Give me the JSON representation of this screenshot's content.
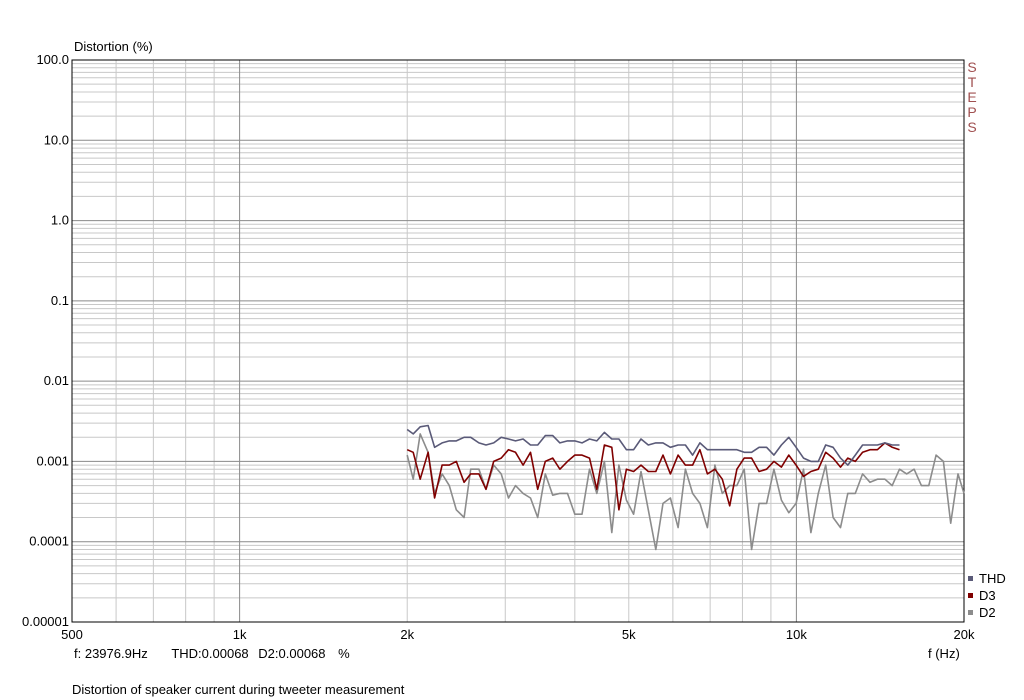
{
  "chart_data": {
    "type": "line",
    "ylabel": "Distortion (%)",
    "xlabel": "f (Hz)",
    "x_scale": "log",
    "y_scale": "log",
    "xlim": [
      500,
      20000
    ],
    "ylim": [
      1e-05,
      100
    ],
    "grid": true,
    "x_ticks": [
      {
        "value": 500,
        "label": "500"
      },
      {
        "value": 1000,
        "label": "1k"
      },
      {
        "value": 2000,
        "label": "2k"
      },
      {
        "value": 5000,
        "label": "5k"
      },
      {
        "value": 10000,
        "label": "10k"
      },
      {
        "value": 20000,
        "label": "20k"
      }
    ],
    "y_ticks": [
      {
        "value": 100,
        "label": "100.0"
      },
      {
        "value": 10,
        "label": "10.0"
      },
      {
        "value": 1,
        "label": "1.0"
      },
      {
        "value": 0.1,
        "label": "0.1"
      },
      {
        "value": 0.01,
        "label": "0.01"
      },
      {
        "value": 0.001,
        "label": "0.001"
      },
      {
        "value": 0.0001,
        "label": "0.0001"
      },
      {
        "value": 1e-05,
        "label": "0.00001"
      }
    ],
    "legend_position": "bottom-right",
    "series": [
      {
        "name": "THD",
        "color": "#5a5a78",
        "x": [
          2000,
          2050,
          2110,
          2180,
          2240,
          2310,
          2380,
          2450,
          2530,
          2600,
          2690,
          2770,
          2860,
          2950,
          3040,
          3130,
          3230,
          3330,
          3430,
          3540,
          3650,
          3760,
          3880,
          4000,
          4120,
          4250,
          4380,
          4520,
          4660,
          4800,
          4950,
          5100,
          5260,
          5420,
          5590,
          5760,
          5940,
          6130,
          6320,
          6510,
          6710,
          6920,
          7140,
          7360,
          7590,
          7820,
          8060,
          8310,
          8570,
          8840,
          9110,
          9400,
          9690,
          9990,
          10300,
          10620,
          10950,
          11290,
          11640,
          12000,
          12370,
          12760,
          13150,
          13560,
          13980,
          14420,
          14860,
          15320
        ],
        "values": [
          0.0025,
          0.0022,
          0.0027,
          0.0028,
          0.0015,
          0.0017,
          0.0018,
          0.0018,
          0.002,
          0.002,
          0.0017,
          0.0016,
          0.0017,
          0.002,
          0.0019,
          0.0018,
          0.0019,
          0.0016,
          0.0016,
          0.0021,
          0.0021,
          0.0017,
          0.0018,
          0.0018,
          0.0017,
          0.0019,
          0.0018,
          0.0023,
          0.0019,
          0.0019,
          0.0014,
          0.0014,
          0.0019,
          0.0016,
          0.0017,
          0.0017,
          0.0015,
          0.0016,
          0.0016,
          0.0012,
          0.0017,
          0.0014,
          0.0014,
          0.0014,
          0.0014,
          0.0014,
          0.0013,
          0.0013,
          0.0015,
          0.0015,
          0.0012,
          0.0016,
          0.002,
          0.0015,
          0.0011,
          0.001,
          0.001,
          0.0016,
          0.0015,
          0.0011,
          0.0009,
          0.0012,
          0.0016,
          0.0016,
          0.0016,
          0.0017,
          0.0016,
          0.0016
        ]
      },
      {
        "name": "D3",
        "color": "#800000",
        "x": [
          2000,
          2050,
          2110,
          2180,
          2240,
          2310,
          2380,
          2450,
          2530,
          2600,
          2690,
          2770,
          2860,
          2950,
          3040,
          3130,
          3230,
          3330,
          3430,
          3540,
          3650,
          3760,
          3880,
          4000,
          4120,
          4250,
          4380,
          4520,
          4660,
          4800,
          4950,
          5100,
          5260,
          5420,
          5590,
          5760,
          5940,
          6130,
          6320,
          6510,
          6710,
          6920,
          7140,
          7360,
          7590,
          7820,
          8060,
          8310,
          8570,
          8840,
          9110,
          9400,
          9690,
          9990,
          10300,
          10620,
          10950,
          11290,
          11640,
          12000,
          12370,
          12760,
          13150,
          13560,
          13980,
          14420,
          14860,
          15320
        ],
        "values": [
          0.0014,
          0.0013,
          0.0006,
          0.0013,
          0.00035,
          0.0009,
          0.0009,
          0.001,
          0.00055,
          0.0007,
          0.0007,
          0.00045,
          0.001,
          0.0011,
          0.0014,
          0.0013,
          0.0009,
          0.0013,
          0.00045,
          0.001,
          0.0011,
          0.0008,
          0.001,
          0.0012,
          0.0012,
          0.0011,
          0.00045,
          0.0016,
          0.0015,
          0.00025,
          0.0008,
          0.00075,
          0.0009,
          0.00075,
          0.00075,
          0.0012,
          0.0007,
          0.0012,
          0.0009,
          0.0009,
          0.0014,
          0.0007,
          0.0008,
          0.0006,
          0.00028,
          0.0008,
          0.0011,
          0.0011,
          0.00075,
          0.0008,
          0.001,
          0.00085,
          0.0012,
          0.0009,
          0.00065,
          0.00075,
          0.0008,
          0.0013,
          0.0011,
          0.00085,
          0.0011,
          0.001,
          0.0013,
          0.0014,
          0.0014,
          0.0017,
          0.0015,
          0.0014
        ]
      },
      {
        "name": "D2",
        "color": "#8c8c8c",
        "x": [
          2000,
          2050,
          2110,
          2180,
          2240,
          2310,
          2380,
          2450,
          2530,
          2600,
          2690,
          2770,
          2860,
          2950,
          3040,
          3130,
          3230,
          3330,
          3430,
          3540,
          3650,
          3760,
          3880,
          4000,
          4120,
          4250,
          4380,
          4520,
          4660,
          4800,
          4950,
          5100,
          5260,
          5420,
          5590,
          5760,
          5940,
          6130,
          6320,
          6510,
          6710,
          6920,
          7140,
          7360,
          7590,
          7820,
          8060,
          8310,
          8570,
          8840,
          9110,
          9400,
          9690,
          9990,
          10300,
          10620,
          10950,
          11290,
          11640,
          12000,
          12370,
          12760,
          13150,
          13560,
          13980,
          14420,
          14860,
          15320,
          15780,
          16270,
          16770,
          17290,
          17820,
          18370,
          18930,
          19510,
          20000
        ],
        "values": [
          0.0012,
          0.0006,
          0.0022,
          0.0013,
          0.0004,
          0.0007,
          0.0005,
          0.00025,
          0.0002,
          0.0008,
          0.0008,
          0.00045,
          0.0009,
          0.0007,
          0.00035,
          0.0005,
          0.0004,
          0.00035,
          0.0002,
          0.0007,
          0.00038,
          0.0004,
          0.0004,
          0.00022,
          0.00022,
          0.0008,
          0.0004,
          0.001,
          0.00013,
          0.0009,
          0.00033,
          0.00022,
          0.00075,
          0.00025,
          8e-05,
          0.0003,
          0.00035,
          0.00015,
          0.0008,
          0.0004,
          0.0003,
          0.00015,
          0.0009,
          0.0004,
          0.0005,
          0.0005,
          0.0008,
          8e-05,
          0.0003,
          0.0003,
          0.0008,
          0.00033,
          0.00023,
          0.0003,
          0.0008,
          0.00013,
          0.0004,
          0.0009,
          0.0002,
          0.00015,
          0.0004,
          0.0004,
          0.0007,
          0.00055,
          0.0006,
          0.0006,
          0.0005,
          0.0008,
          0.0007,
          0.0008,
          0.0005,
          0.0005,
          0.0012,
          0.001,
          0.00017,
          0.0007,
          0.0004
        ]
      }
    ]
  },
  "readout": {
    "frequency": "f: 23976.9Hz",
    "thd": "THD:0.00068",
    "d2": "D2:0.00068",
    "unit": "%"
  },
  "steps_label": "STEPS",
  "caption": "Distortion of speaker current during tweeter measurement"
}
